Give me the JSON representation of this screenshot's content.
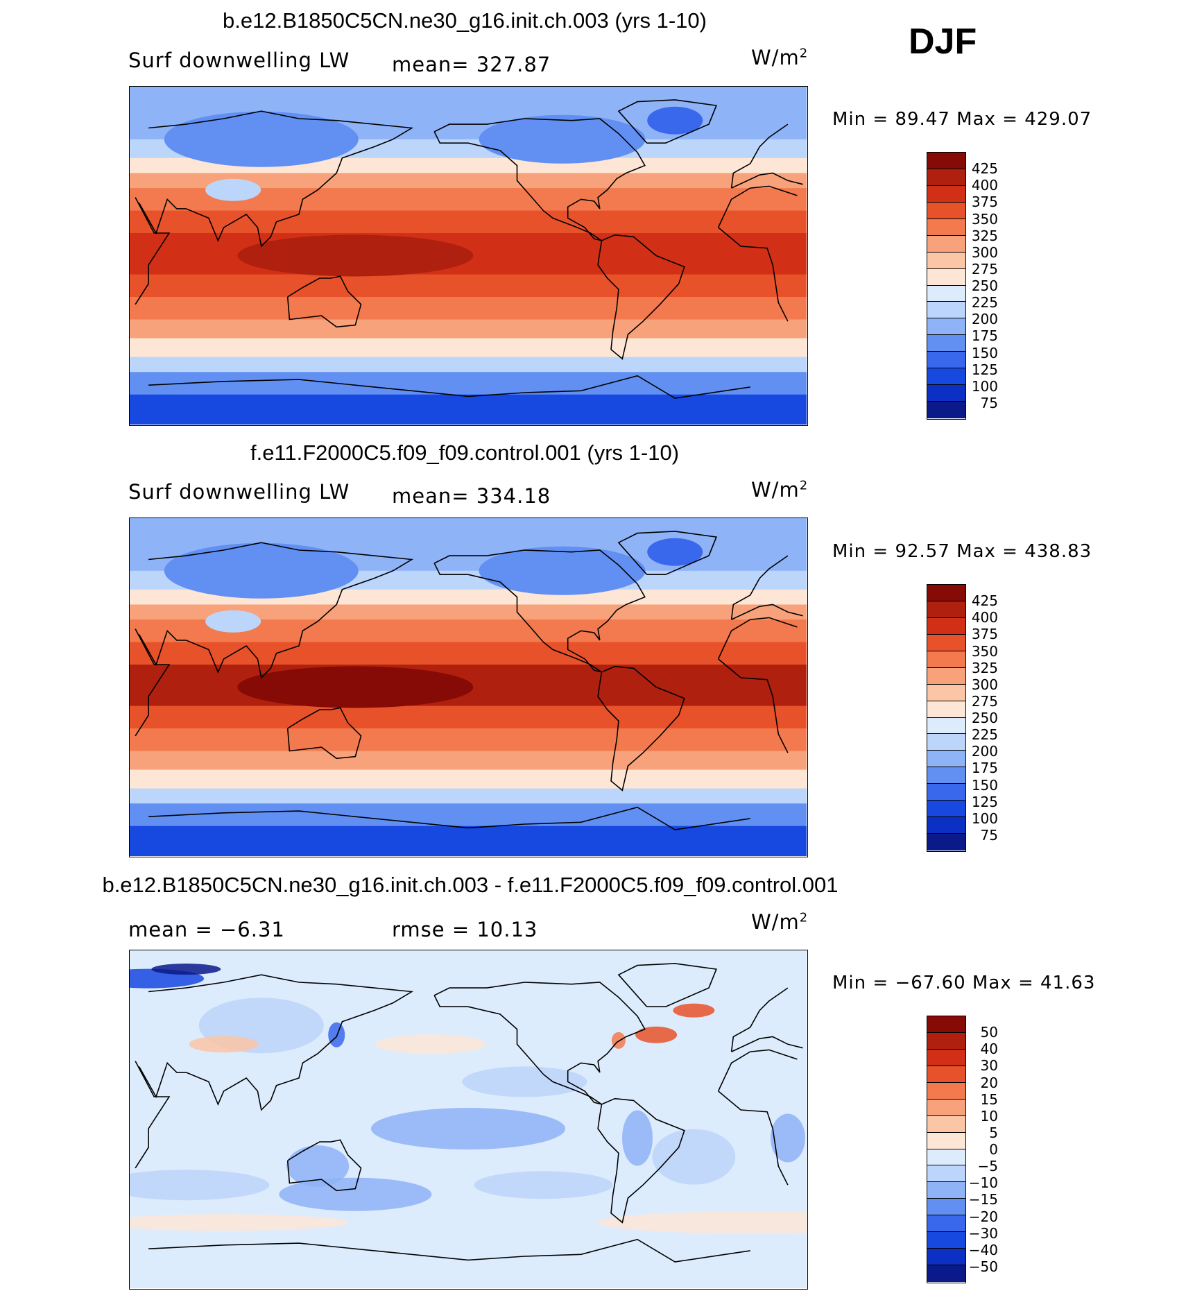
{
  "season": "DJF",
  "colors": {
    "abs": [
      "#0a1a8a",
      "#0c2fc4",
      "#1748e0",
      "#3a68ec",
      "#6190f2",
      "#8fb3f7",
      "#bcd5fa",
      "#ddecfc",
      "#fde6d6",
      "#fbc6a6",
      "#f7a27a",
      "#f27a4e",
      "#e8522a",
      "#d13016",
      "#b0200e",
      "#860a05"
    ],
    "diff": [
      "#0a1a8a",
      "#0c2fc4",
      "#1748e0",
      "#3a68ec",
      "#6190f2",
      "#8fb3f7",
      "#bcd5fa",
      "#ddecfc",
      "#fde6d6",
      "#fbc6a6",
      "#f7a27a",
      "#f27a4e",
      "#e8522a",
      "#d13016",
      "#b0200e",
      "#860a05"
    ]
  },
  "panels": [
    {
      "title": "b.e12.B1850C5CN.ne30_g16.init.ch.003 (yrs 1-10)",
      "left_label": "Surf downwelling LW",
      "center_label": "mean= 327.87",
      "units": "W/m",
      "units_sup": "2",
      "minmax": "Min =  89.47 Max = 429.07",
      "kind": "abs"
    },
    {
      "title": "f.e11.F2000C5.f09_f09.control.001 (yrs 1-10)",
      "left_label": "Surf downwelling LW",
      "center_label": "mean= 334.18",
      "units": "W/m",
      "units_sup": "2",
      "minmax": "Min =  92.57 Max = 438.83",
      "kind": "abs"
    },
    {
      "title": "b.e12.B1850C5CN.ne30_g16.init.ch.003 - f.e11.F2000C5.f09_f09.control.001",
      "left_label": "mean =  −6.31",
      "center_label": "rmse =  10.13",
      "units": "W/m",
      "units_sup": "2",
      "minmax": "Min = −67.60 Max =  41.63",
      "kind": "diff"
    }
  ],
  "chart_data": [
    {
      "type": "heatmap",
      "title": "b.e12.B1850C5CN.ne30_g16.init.ch.003 (yrs 1-10)",
      "variable": "Surf downwelling LW",
      "units": "W/m2",
      "mean": 327.87,
      "min": 89.47,
      "max": 429.07,
      "contour_levels": [
        425,
        400,
        375,
        350,
        325,
        300,
        275,
        250,
        225,
        200,
        175,
        150,
        125,
        100,
        75
      ],
      "level_labels": [
        "425",
        "400",
        "375",
        "350",
        "325",
        "300",
        "275",
        "250",
        "225",
        "200",
        "175",
        "150",
        "125",
        "100",
        "75"
      ]
    },
    {
      "type": "heatmap",
      "title": "f.e11.F2000C5.f09_f09.control.001 (yrs 1-10)",
      "variable": "Surf downwelling LW",
      "units": "W/m2",
      "mean": 334.18,
      "min": 92.57,
      "max": 438.83,
      "contour_levels": [
        425,
        400,
        375,
        350,
        325,
        300,
        275,
        250,
        225,
        200,
        175,
        150,
        125,
        100,
        75
      ],
      "level_labels": [
        "425",
        "400",
        "375",
        "350",
        "325",
        "300",
        "275",
        "250",
        "225",
        "200",
        "175",
        "150",
        "125",
        "100",
        "75"
      ]
    },
    {
      "type": "heatmap",
      "title": "b.e12.B1850C5CN.ne30_g16.init.ch.003 - f.e11.F2000C5.f09_f09.control.001",
      "units": "W/m2",
      "mean": -6.31,
      "rmse": 10.13,
      "min": -67.6,
      "max": 41.63,
      "contour_levels": [
        50,
        40,
        30,
        20,
        15,
        10,
        5,
        0,
        -5,
        -10,
        -15,
        -20,
        -30,
        -40,
        -50
      ],
      "level_labels": [
        "50",
        "40",
        "30",
        "20",
        "15",
        "10",
        "5",
        "0",
        "−5",
        "−10",
        "−15",
        "−20",
        "−30",
        "−40",
        "−50"
      ]
    }
  ]
}
